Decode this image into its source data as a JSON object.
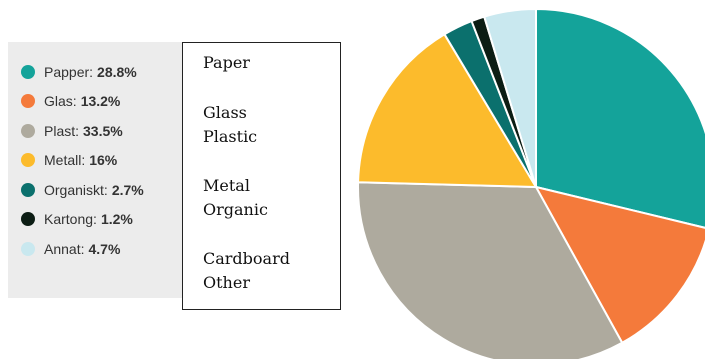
{
  "chart_data": {
    "type": "pie",
    "slices": [
      {
        "label": "Papper",
        "value": 28.8,
        "display": "28.8%",
        "color": "#14a39a"
      },
      {
        "label": "Glas",
        "value": 13.2,
        "display": "13.2%",
        "color": "#f47a3b"
      },
      {
        "label": "Plast",
        "value": 33.5,
        "display": "33.5%",
        "color": "#aeaa9e"
      },
      {
        "label": "Metall",
        "value": 16,
        "display": "16%",
        "color": "#fcbb2c"
      },
      {
        "label": "Organiskt",
        "value": 2.7,
        "display": "2.7%",
        "color": "#0b706d"
      },
      {
        "label": "Kartong",
        "value": 1.2,
        "display": "1.2%",
        "color": "#0c1d14"
      },
      {
        "label": "Annat",
        "value": 4.7,
        "display": "4.7%",
        "color": "#c9e8ef"
      }
    ],
    "legend_position": "left"
  },
  "translations": [
    "Paper",
    "Glass",
    "Plastic",
    "Metal",
    "Organic",
    "Cardboard",
    "Other"
  ]
}
